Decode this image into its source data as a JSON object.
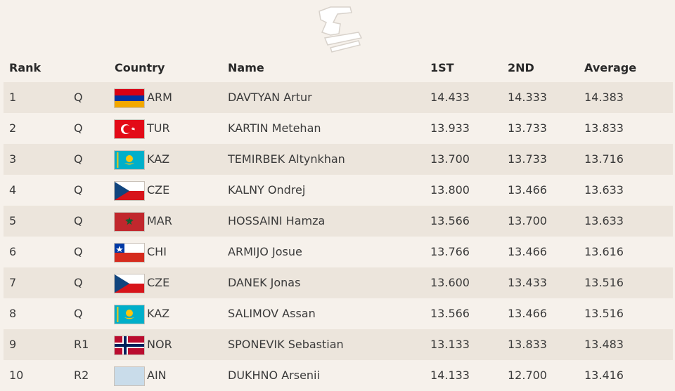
{
  "headers": {
    "rank": "Rank",
    "country": "Country",
    "name": "Name",
    "first": "1ST",
    "second": "2ND",
    "average": "Average"
  },
  "rows": [
    {
      "rank": "1",
      "q": "Q",
      "flag": "arm-flag-icon",
      "code": "ARM",
      "name": "DAVTYAN Artur",
      "s1": "14.433",
      "s2": "14.333",
      "avg": "14.383"
    },
    {
      "rank": "2",
      "q": "Q",
      "flag": "tur-flag-icon",
      "code": "TUR",
      "name": "KARTIN Metehan",
      "s1": "13.933",
      "s2": "13.733",
      "avg": "13.833"
    },
    {
      "rank": "3",
      "q": "Q",
      "flag": "kaz-flag-icon",
      "code": "KAZ",
      "name": "TEMIRBEK Altynkhan",
      "s1": "13.700",
      "s2": "13.733",
      "avg": "13.716"
    },
    {
      "rank": "4",
      "q": "Q",
      "flag": "cze-flag-icon",
      "code": "CZE",
      "name": "KALNY Ondrej",
      "s1": "13.800",
      "s2": "13.466",
      "avg": "13.633"
    },
    {
      "rank": "5",
      "q": "Q",
      "flag": "mar-flag-icon",
      "code": "MAR",
      "name": "HOSSAINI Hamza",
      "s1": "13.566",
      "s2": "13.700",
      "avg": "13.633"
    },
    {
      "rank": "6",
      "q": "Q",
      "flag": "chi-flag-icon",
      "code": "CHI",
      "name": "ARMIJO Josue",
      "s1": "13.766",
      "s2": "13.466",
      "avg": "13.616"
    },
    {
      "rank": "7",
      "q": "Q",
      "flag": "cze-flag-icon",
      "code": "CZE",
      "name": "DANEK Jonas",
      "s1": "13.600",
      "s2": "13.433",
      "avg": "13.516"
    },
    {
      "rank": "8",
      "q": "Q",
      "flag": "kaz-flag-icon",
      "code": "KAZ",
      "name": "SALIMOV Assan",
      "s1": "13.566",
      "s2": "13.466",
      "avg": "13.516"
    },
    {
      "rank": "9",
      "q": "R1",
      "flag": "nor-flag-icon",
      "code": "NOR",
      "name": "SPONEVIK Sebastian",
      "s1": "13.133",
      "s2": "13.833",
      "avg": "13.483"
    },
    {
      "rank": "10",
      "q": "R2",
      "flag": "ain-flag-icon",
      "code": "AIN",
      "name": "DUKHNO Arsenii",
      "s1": "14.133",
      "s2": "12.700",
      "avg": "13.416"
    }
  ]
}
